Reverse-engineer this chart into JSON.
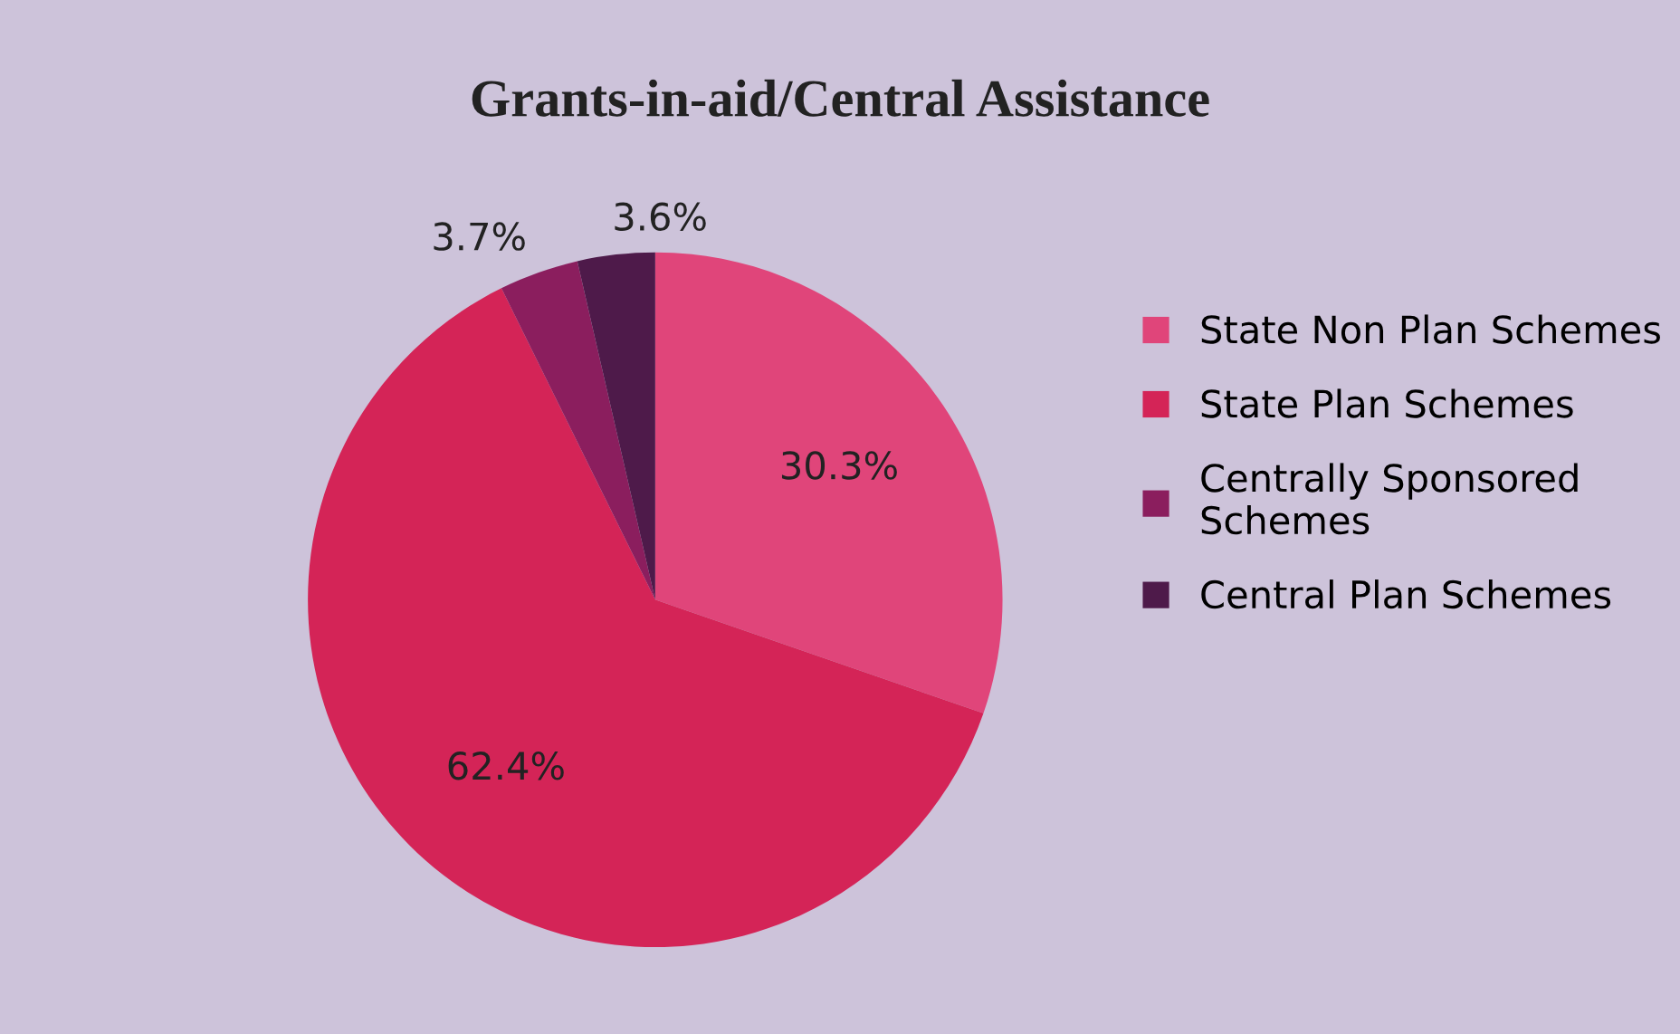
{
  "chart_data": {
    "type": "pie",
    "title": "Grants-in-aid/Central Assistance",
    "categories": [
      "State Non Plan Schemes",
      "State Plan Schemes",
      "Centrally Sponsored Schemes",
      "Central Plan Schemes"
    ],
    "values": [
      30.3,
      62.4,
      3.7,
      3.6
    ],
    "colors": [
      "#e0457a",
      "#d42457",
      "#8b1e5e",
      "#4e1a4a"
    ],
    "value_labels": [
      "30.3%",
      "62.4%",
      "3.7%",
      "3.6%"
    ],
    "legend": "right"
  }
}
